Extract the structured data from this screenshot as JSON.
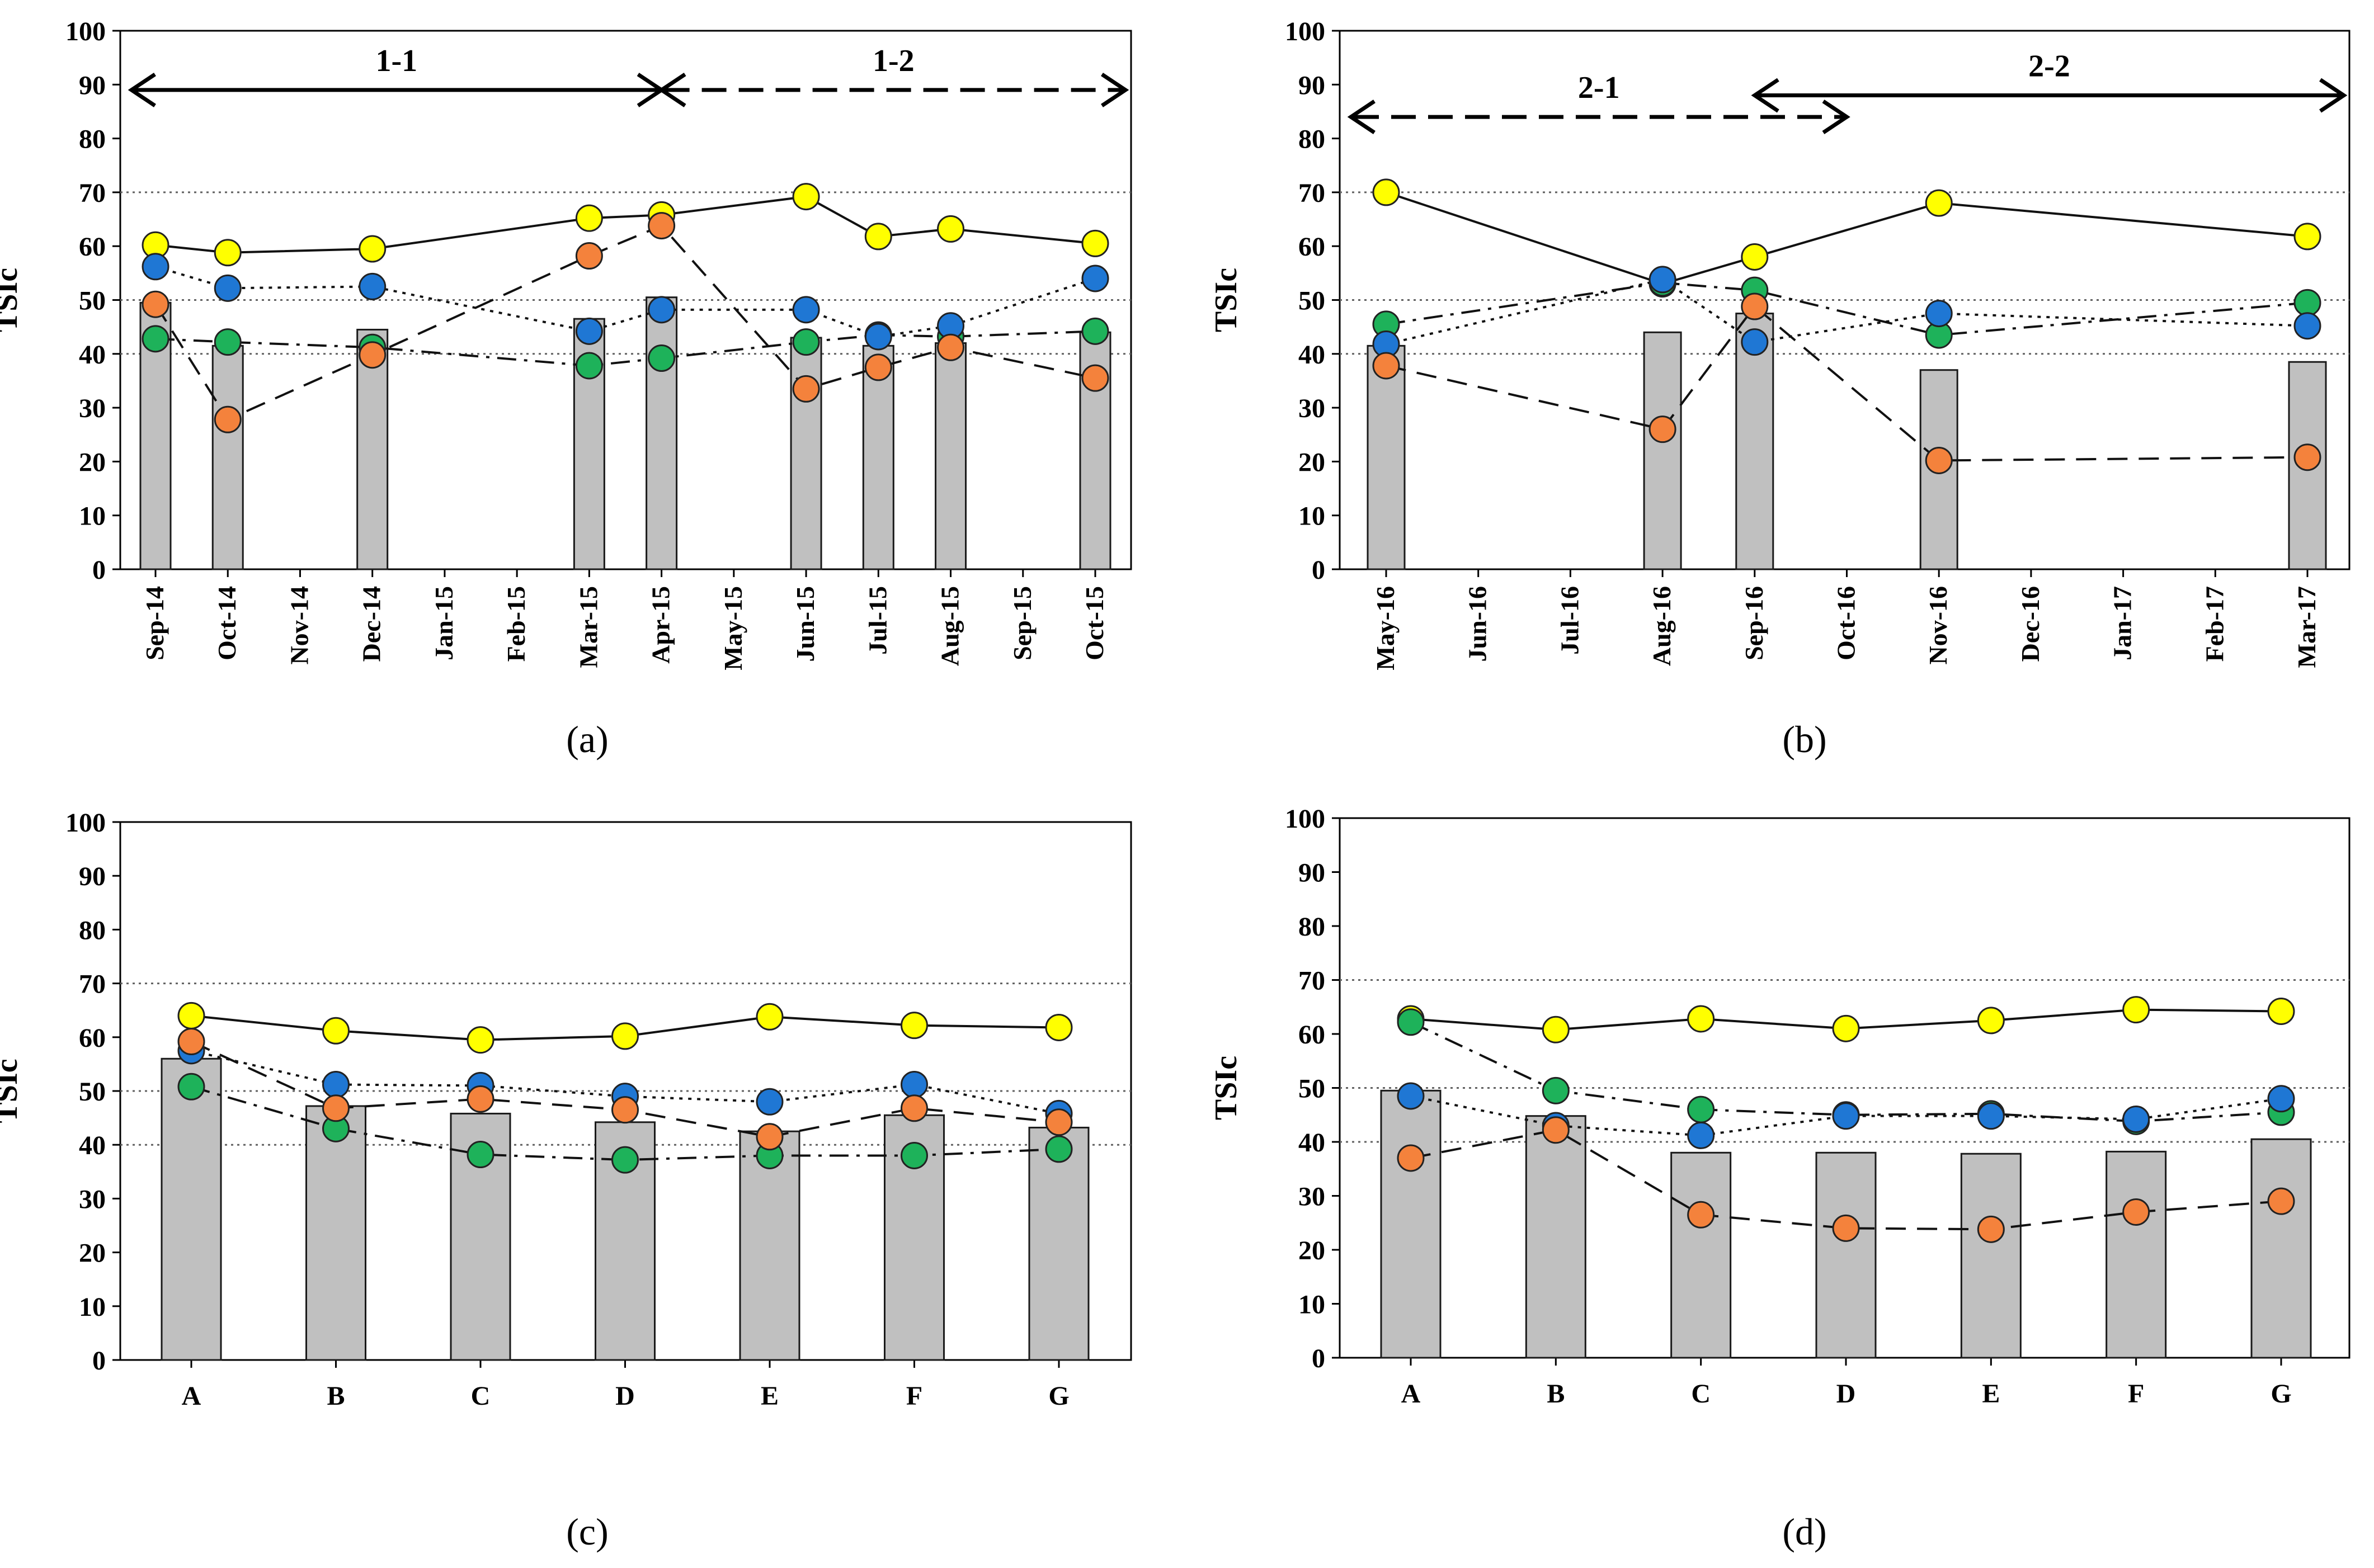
{
  "figure": {
    "panel_labels": [
      "(a)",
      "(b)",
      "(c)",
      "(d)"
    ]
  },
  "colors": {
    "yellow": "#ffff00",
    "blue": "#1f77d4",
    "orange": "#f4823c",
    "green": "#1eb25a",
    "bar": "#c0c0c0",
    "grid": "#606060"
  },
  "chart_data": [
    {
      "panel": "(a)",
      "type": "bar+line",
      "ylabel": "TSIc",
      "ylim": [
        0,
        100
      ],
      "yticks": [
        0,
        10,
        20,
        30,
        40,
        50,
        60,
        70,
        80,
        90,
        100
      ],
      "reference_lines": [
        40,
        50,
        70
      ],
      "categories": [
        "Sep-14",
        "Oct-14",
        "Nov-14",
        "Dec-14",
        "Jan-15",
        "Feb-15",
        "Mar-15",
        "Apr-15",
        "May-15",
        "Jun-15",
        "Jul-15",
        "Aug-15",
        "Sep-15",
        "Oct-15"
      ],
      "bars": [
        49.5,
        41.5,
        null,
        44.5,
        null,
        null,
        46.5,
        50.5,
        null,
        43,
        41.5,
        42,
        null,
        44
      ],
      "series": [
        {
          "name": "yellow",
          "line": "solid",
          "values": [
            60.2,
            58.8,
            null,
            59.5,
            null,
            null,
            65.2,
            65.8,
            null,
            69.2,
            61.8,
            63.2,
            null,
            60.5
          ]
        },
        {
          "name": "blue",
          "line": "dotted",
          "values": [
            56.2,
            52.2,
            null,
            52.5,
            null,
            null,
            44.2,
            48.2,
            null,
            48.2,
            43.2,
            45.2,
            null,
            54
          ]
        },
        {
          "name": "orange",
          "line": "dashed",
          "values": [
            49.2,
            27.8,
            null,
            39.8,
            null,
            null,
            58.2,
            63.8,
            null,
            33.5,
            37.5,
            41.2,
            null,
            35.5
          ]
        },
        {
          "name": "green",
          "line": "dashdot",
          "values": [
            42.8,
            42.2,
            null,
            41.2,
            null,
            null,
            37.8,
            39.2,
            null,
            42.2,
            43.5,
            43.2,
            null,
            44.2
          ]
        }
      ],
      "annotations": [
        {
          "label": "1-1",
          "from": "Sep-14",
          "to": "Apr-15",
          "y": 89,
          "style": "solid"
        },
        {
          "label": "1-2",
          "from": "Apr-15",
          "to": "Oct-15",
          "y": 89,
          "style": "dashed"
        }
      ]
    },
    {
      "panel": "(b)",
      "type": "bar+line",
      "ylabel": "TSIc",
      "ylim": [
        0,
        100
      ],
      "yticks": [
        0,
        10,
        20,
        30,
        40,
        50,
        60,
        70,
        80,
        90,
        100
      ],
      "reference_lines": [
        40,
        50,
        70
      ],
      "categories": [
        "May-16",
        "Jun-16",
        "Jul-16",
        "Aug-16",
        "Sep-16",
        "Oct-16",
        "Nov-16",
        "Dec-16",
        "Jan-17",
        "Feb-17",
        "Mar-17"
      ],
      "bars": [
        41.5,
        null,
        null,
        44,
        47.5,
        null,
        37,
        null,
        null,
        null,
        38.5
      ],
      "series": [
        {
          "name": "yellow",
          "line": "solid",
          "values": [
            70,
            null,
            null,
            53,
            58,
            null,
            68,
            null,
            null,
            null,
            61.8
          ]
        },
        {
          "name": "blue",
          "line": "dotted",
          "values": [
            41.8,
            null,
            null,
            53.8,
            42.2,
            null,
            47.5,
            null,
            null,
            null,
            45.2
          ]
        },
        {
          "name": "orange",
          "line": "dashed",
          "values": [
            37.8,
            null,
            null,
            26,
            48.8,
            null,
            20.2,
            null,
            null,
            null,
            20.8
          ]
        },
        {
          "name": "green",
          "line": "dashdot",
          "values": [
            45.5,
            null,
            null,
            53.2,
            51.8,
            null,
            43.5,
            null,
            null,
            null,
            49.5
          ]
        }
      ],
      "annotations": [
        {
          "label": "2-1",
          "from": "May-16",
          "to": "Oct-16",
          "y": 84,
          "style": "dashed"
        },
        {
          "label": "2-2",
          "from": "Sep-16",
          "to": "Mar-17",
          "y": 88,
          "style": "solid"
        }
      ]
    },
    {
      "panel": "(c)",
      "type": "bar+line",
      "ylabel": "TSIc",
      "ylim": [
        0,
        100
      ],
      "yticks": [
        0,
        10,
        20,
        30,
        40,
        50,
        60,
        70,
        80,
        90,
        100
      ],
      "reference_lines": [
        40,
        50,
        70
      ],
      "categories": [
        "A",
        "B",
        "C",
        "D",
        "E",
        "F",
        "G"
      ],
      "bars": [
        56,
        47.2,
        45.8,
        44.2,
        42.5,
        45.5,
        43.2
      ],
      "series": [
        {
          "name": "yellow",
          "line": "solid",
          "values": [
            64,
            61.2,
            59.5,
            60.2,
            63.8,
            62.2,
            61.8
          ]
        },
        {
          "name": "blue",
          "line": "dotted",
          "values": [
            57.5,
            51.2,
            51,
            49,
            48,
            51.2,
            45.8
          ]
        },
        {
          "name": "orange",
          "line": "dashed",
          "values": [
            59.2,
            46.8,
            48.5,
            46.5,
            41.5,
            46.8,
            44.2
          ]
        },
        {
          "name": "green",
          "line": "dashdot",
          "values": [
            50.8,
            43,
            38.2,
            37.2,
            38,
            38,
            39.2
          ]
        }
      ]
    },
    {
      "panel": "(d)",
      "type": "bar+line",
      "ylabel": "TSIc",
      "ylim": [
        0,
        100
      ],
      "yticks": [
        0,
        10,
        20,
        30,
        40,
        50,
        60,
        70,
        80,
        90,
        100
      ],
      "reference_lines": [
        40,
        50,
        70
      ],
      "categories": [
        "A",
        "B",
        "C",
        "D",
        "E",
        "F",
        "G"
      ],
      "bars": [
        49.5,
        44.8,
        38,
        38,
        37.8,
        38.2,
        40.5
      ],
      "series": [
        {
          "name": "yellow",
          "line": "solid",
          "values": [
            62.8,
            60.8,
            62.8,
            61,
            62.5,
            64.5,
            64.2
          ]
        },
        {
          "name": "blue",
          "line": "dotted",
          "values": [
            48.5,
            43,
            41.2,
            44.8,
            44.8,
            44.2,
            48
          ]
        },
        {
          "name": "orange",
          "line": "dashed",
          "values": [
            37,
            42.2,
            26.5,
            24,
            23.8,
            27,
            29
          ]
        },
        {
          "name": "green",
          "line": "dashdot",
          "values": [
            62.2,
            49.5,
            46,
            45,
            45.2,
            43.8,
            45.5
          ]
        }
      ]
    }
  ]
}
